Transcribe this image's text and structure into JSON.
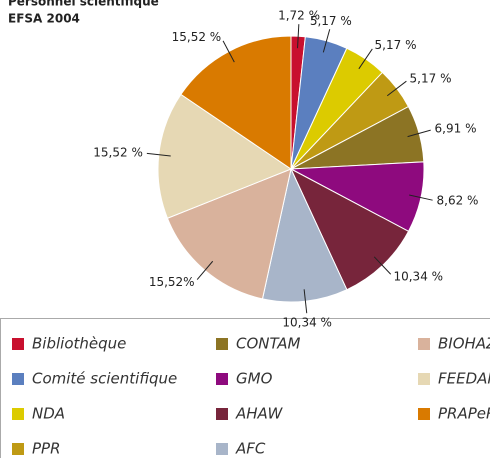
{
  "chart_data": {
    "type": "pie",
    "title": "Personnel scientifique",
    "subtitle": "EFSA 2004",
    "categories": [
      "Bibliothèque",
      "Comité scientifique",
      "NDA",
      "PPR",
      "CONTAM",
      "GMO",
      "AHAW",
      "AFC",
      "BIOHAZ",
      "FEEDAP",
      "PRAPeR"
    ],
    "values": [
      1.72,
      5.17,
      5.17,
      5.17,
      6.91,
      8.62,
      10.34,
      10.34,
      15.52,
      15.52,
      15.52
    ],
    "value_labels": [
      "1,72 %",
      "5,17 %",
      "5,17 %",
      "5,17 %",
      "6,91 %",
      "8,62 %",
      "10,34 %",
      "10,34 %",
      "15,52%",
      "15,52 %",
      "15,52 %"
    ],
    "colors": [
      "#c8102e",
      "#5b7fbf",
      "#dccb00",
      "#bf9a14",
      "#8c7424",
      "#8e0a7e",
      "#77253b",
      "#a8b5c9",
      "#d9b29c",
      "#e6d8b4",
      "#d97a00"
    ]
  }
}
